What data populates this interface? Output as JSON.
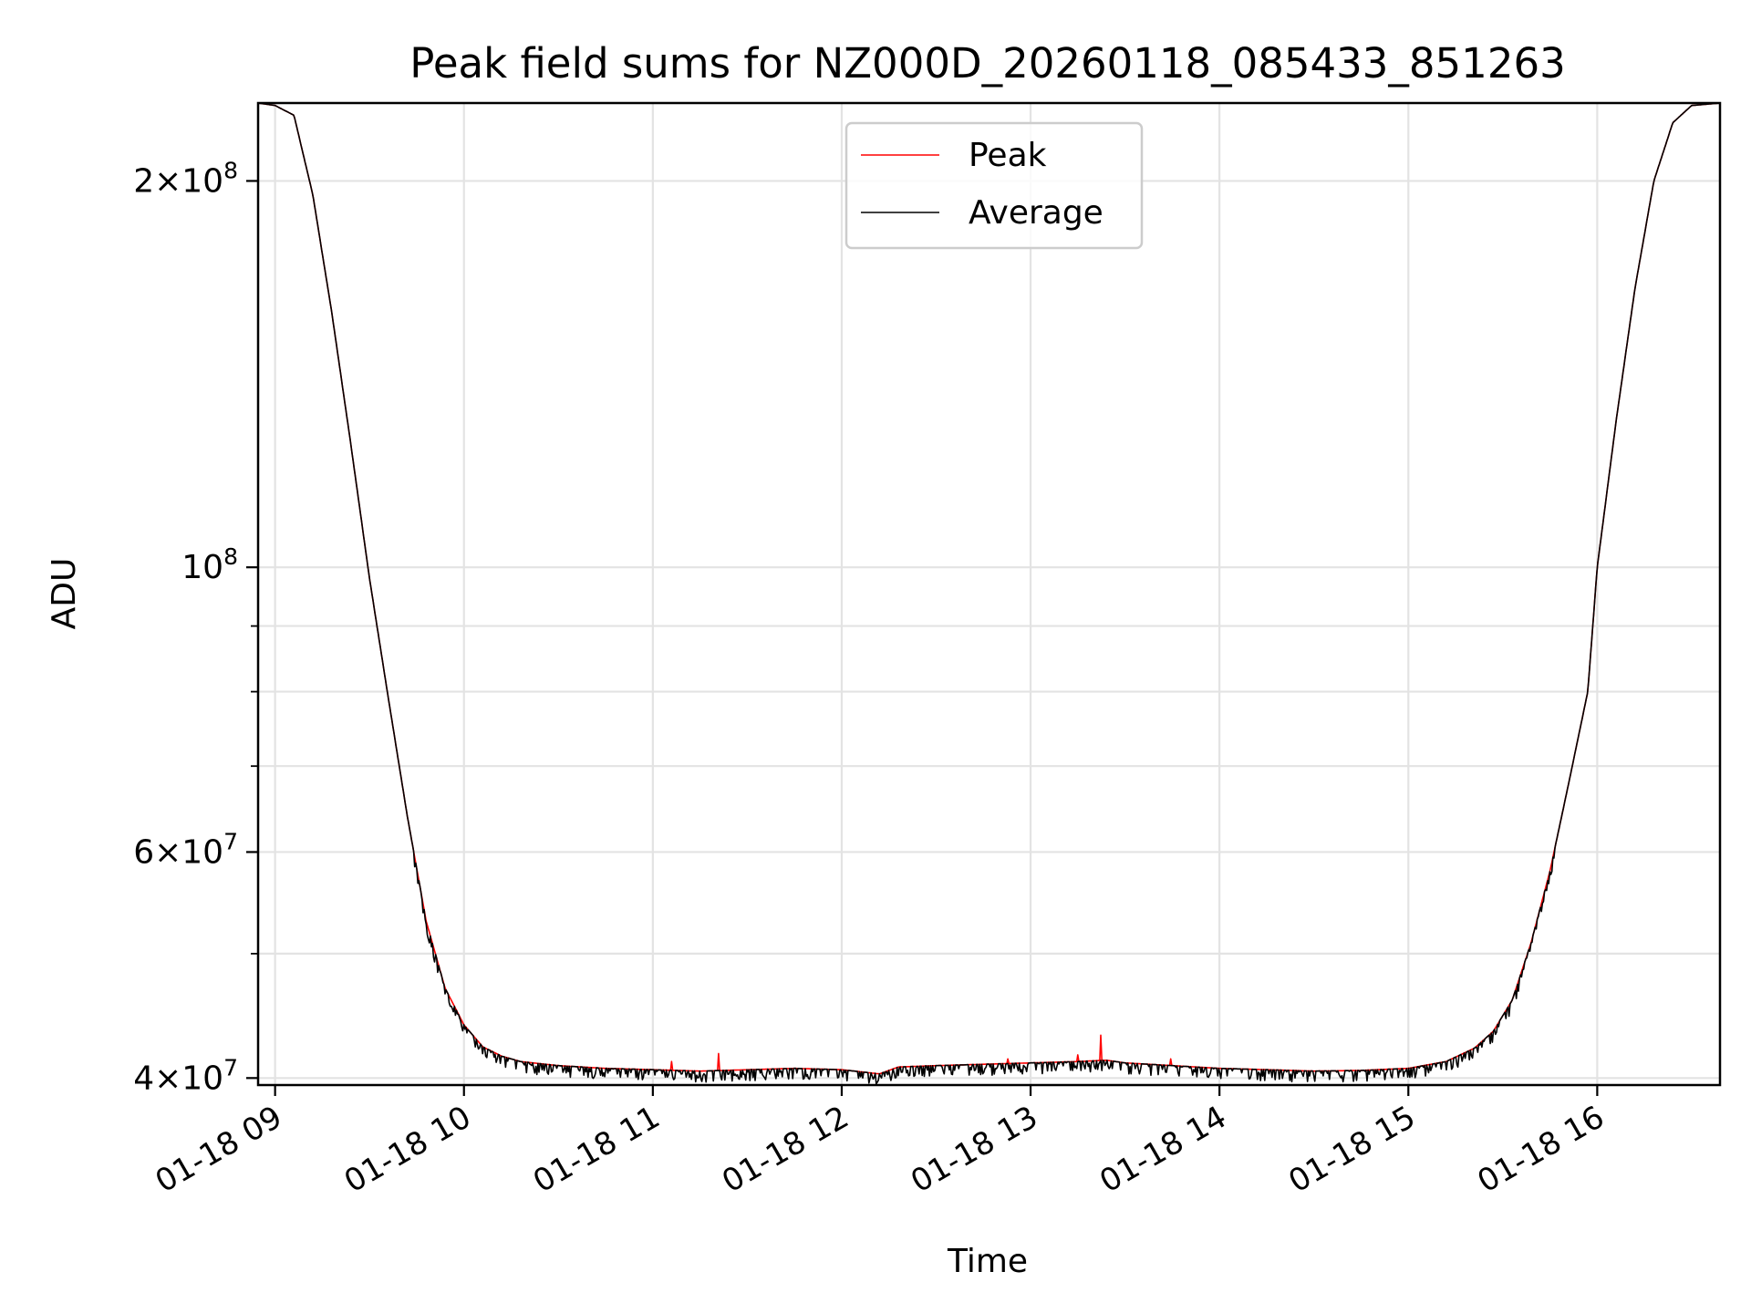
{
  "chart_data": {
    "type": "line",
    "title": "Peak field sums for NZ000D_20260118_085433_851263",
    "xlabel": "Time",
    "ylabel": "ADU",
    "yscale": "log",
    "xlim_hours": [
      8.91,
      16.65
    ],
    "ylim": [
      39500000,
      230000000
    ],
    "xtick_hours": [
      9,
      10,
      11,
      12,
      13,
      14,
      15,
      16
    ],
    "xtick_labels": [
      "01-18 09",
      "01-18 10",
      "01-18 11",
      "01-18 12",
      "01-18 13",
      "01-18 14",
      "01-18 15",
      "01-18 16"
    ],
    "ytick_values": [
      40000000,
      60000000,
      100000000,
      200000000
    ],
    "ytick_labels": [
      {
        "mant": "4",
        "exp": "7"
      },
      {
        "mant": "6",
        "exp": "7"
      },
      {
        "mant": "",
        "exp": "8"
      },
      {
        "mant": "2",
        "exp": "8"
      }
    ],
    "yminor_values": [
      50000000,
      70000000,
      80000000,
      90000000
    ],
    "grid": true,
    "legend": {
      "position": "top-center",
      "entries": [
        "Peak",
        "Average"
      ]
    },
    "series": [
      {
        "name": "Peak",
        "color": "#ff0000",
        "x_hours": [
          8.91,
          9.0,
          9.1,
          9.2,
          9.3,
          9.4,
          9.5,
          9.6,
          9.7,
          9.8,
          9.9,
          10.0,
          10.1,
          10.2,
          10.3,
          10.5,
          10.75,
          11.0,
          11.25,
          11.5,
          11.75,
          12.0,
          12.2,
          12.3,
          12.5,
          12.75,
          13.0,
          13.25,
          13.4,
          13.5,
          13.75,
          14.0,
          14.25,
          14.5,
          14.75,
          15.0,
          15.2,
          15.35,
          15.45,
          15.55,
          15.65,
          15.75,
          15.85,
          15.95,
          16.0,
          16.1,
          16.2,
          16.3,
          16.4,
          16.5,
          16.65
        ],
        "values": [
          230000000,
          229000000,
          225000000,
          195000000,
          158000000,
          125000000,
          98000000,
          79000000,
          64000000,
          53000000,
          47000000,
          44000000,
          42300000,
          41600000,
          41200000,
          40900000,
          40700000,
          40600000,
          40500000,
          40600000,
          40700000,
          40600000,
          40300000,
          40800000,
          40900000,
          41000000,
          41100000,
          41200000,
          41300000,
          41100000,
          40900000,
          40700000,
          40600000,
          40500000,
          40550000,
          40700000,
          41200000,
          42200000,
          43500000,
          46000000,
          51000000,
          58000000,
          68000000,
          80000000,
          100000000,
          130000000,
          165000000,
          200000000,
          222000000,
          229000000,
          230000000
        ],
        "spikes": [
          {
            "x_hours": 11.1,
            "value": 41200000
          },
          {
            "x_hours": 11.35,
            "value": 41800000
          },
          {
            "x_hours": 12.88,
            "value": 41400000
          },
          {
            "x_hours": 13.25,
            "value": 41700000
          },
          {
            "x_hours": 13.37,
            "value": 43200000
          },
          {
            "x_hours": 13.74,
            "value": 41400000
          }
        ]
      },
      {
        "name": "Average",
        "color": "#000000",
        "x_hours": [
          8.91,
          9.0,
          9.1,
          9.2,
          9.3,
          9.4,
          9.5,
          9.6,
          9.7,
          9.8,
          9.9,
          10.0,
          10.1,
          10.2,
          10.3,
          10.5,
          10.75,
          11.0,
          11.25,
          11.5,
          11.75,
          12.0,
          12.2,
          12.3,
          12.5,
          12.75,
          13.0,
          13.25,
          13.4,
          13.5,
          13.75,
          14.0,
          14.25,
          14.5,
          14.75,
          15.0,
          15.2,
          15.35,
          15.45,
          15.55,
          15.65,
          15.75,
          15.85,
          15.95,
          16.0,
          16.1,
          16.2,
          16.3,
          16.4,
          16.5,
          16.65
        ],
        "values": [
          230000000,
          229000000,
          225000000,
          195000000,
          158000000,
          125000000,
          98000000,
          79000000,
          64000000,
          53000000,
          47000000,
          44000000,
          42300000,
          41600000,
          41200000,
          40900000,
          40700000,
          40600000,
          40500000,
          40600000,
          40700000,
          40600000,
          40300000,
          40800000,
          40900000,
          41000000,
          41100000,
          41200000,
          41300000,
          41100000,
          40900000,
          40700000,
          40600000,
          40500000,
          40550000,
          40700000,
          41200000,
          42200000,
          43500000,
          46000000,
          51000000,
          58000000,
          68000000,
          80000000,
          100000000,
          130000000,
          165000000,
          200000000,
          222000000,
          229000000,
          230000000
        ],
        "noise_floor_fraction": 0.02
      }
    ]
  }
}
